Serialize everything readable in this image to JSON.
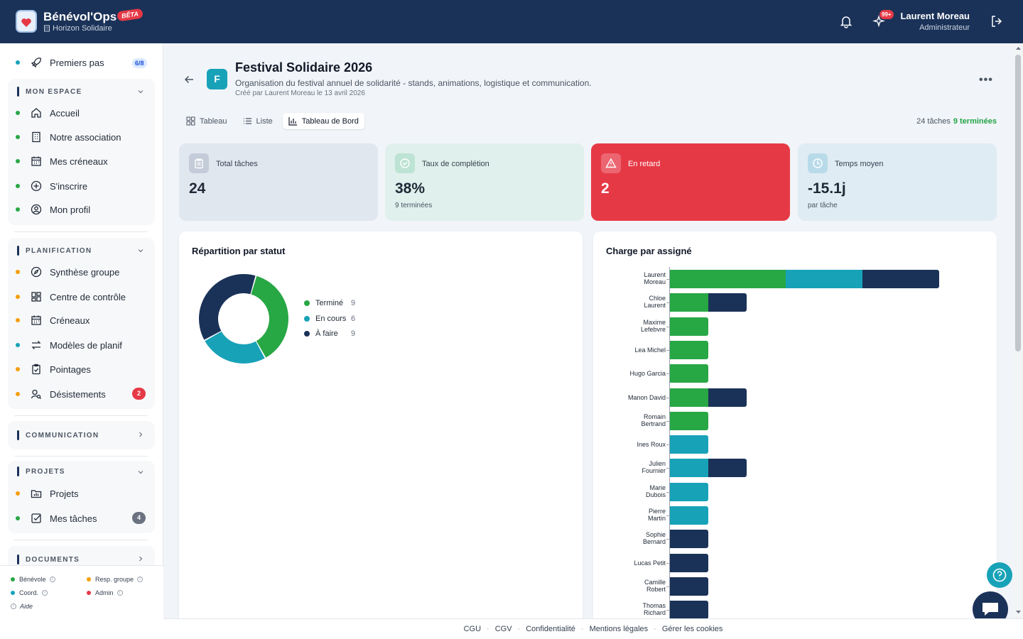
{
  "header": {
    "app_name": "Bénévol'Ops",
    "beta": "BÊTA",
    "org": "Horizon Solidaire",
    "notif_badge": "99+",
    "user_name": "Laurent Moreau",
    "user_role": "Administrateur"
  },
  "sidebar": {
    "first_steps": {
      "label": "Premiers pas",
      "badge": "6/8"
    },
    "groups": [
      {
        "title": "MON ESPACE",
        "items": [
          "Accueil",
          "Notre association",
          "Mes créneaux",
          "S'inscrire",
          "Mon profil"
        ]
      },
      {
        "title": "PLANIFICATION",
        "items": [
          "Synthèse groupe",
          "Centre de contrôle",
          "Créneaux",
          "Modèles de planif",
          "Pointages",
          "Désistements"
        ],
        "desist_badge": "2"
      },
      {
        "title": "COMMUNICATION"
      },
      {
        "title": "PROJETS",
        "items": [
          "Projets",
          "Mes tâches"
        ],
        "tasks_badge": "4"
      },
      {
        "title": "DOCUMENTS"
      }
    ],
    "legend": {
      "benevole": "Bénévole",
      "resp": "Resp. groupe",
      "coord": "Coord.",
      "admin": "Admin",
      "aide": "Aide"
    }
  },
  "project": {
    "initial": "F",
    "title": "Festival Solidaire 2026",
    "description": "Organisation du festival annuel de solidarité - stands, animations, logistique et communication.",
    "meta": "Créé par Laurent Moreau le 13 avril 2026"
  },
  "tabs": [
    "Tableau",
    "Liste",
    "Tableau de Bord"
  ],
  "task_count": {
    "total": "24 tâches",
    "done": "9 terminées"
  },
  "cards": [
    {
      "label": "Total tâches",
      "value": "24",
      "sub": ""
    },
    {
      "label": "Taux de complétion",
      "value": "38%",
      "sub": "9 terminées"
    },
    {
      "label": "En retard",
      "value": "2",
      "sub": ""
    },
    {
      "label": "Temps moyen",
      "value": "-15.1j",
      "sub": "par tâche"
    }
  ],
  "colors": {
    "done": "#28a745",
    "in_progress": "#17a2b8",
    "todo": "#1b3258",
    "danger": "#e63946"
  },
  "chart_data": [
    {
      "type": "pie",
      "title": "Répartition par statut",
      "categories": [
        "Terminé",
        "En cours",
        "À faire"
      ],
      "values": [
        9,
        6,
        9
      ]
    },
    {
      "type": "bar",
      "title": "Charge par assigné",
      "orientation": "horizontal",
      "stacked": true,
      "categories": [
        "Laurent Moreau",
        "Chloe Laurent",
        "Maxime Lefebvre",
        "Lea Michel",
        "Hugo Garcia",
        "Manon David",
        "Romain Bertrand",
        "Ines Roux",
        "Julien Fournier",
        "Marie Dubois",
        "Pierre Martin",
        "Sophie Bernard",
        "Lucas Petit",
        "Camille Robert",
        "Thomas Richard"
      ],
      "series": [
        {
          "values": [
            3,
            1,
            1,
            1,
            1,
            1,
            1,
            0,
            0,
            0,
            0,
            0,
            0,
            0,
            0
          ]
        },
        {
          "values": [
            2,
            0,
            0,
            0,
            0,
            0,
            0,
            1,
            1,
            1,
            1,
            0,
            0,
            0,
            0
          ]
        },
        {
          "values": [
            2,
            1,
            0,
            0,
            0,
            1,
            0,
            0,
            1,
            0,
            0,
            1,
            1,
            1,
            1
          ]
        }
      ]
    }
  ],
  "footer": [
    "CGU",
    "CGV",
    "Confidentialité",
    "Mentions légales",
    "Gérer les cookies"
  ]
}
